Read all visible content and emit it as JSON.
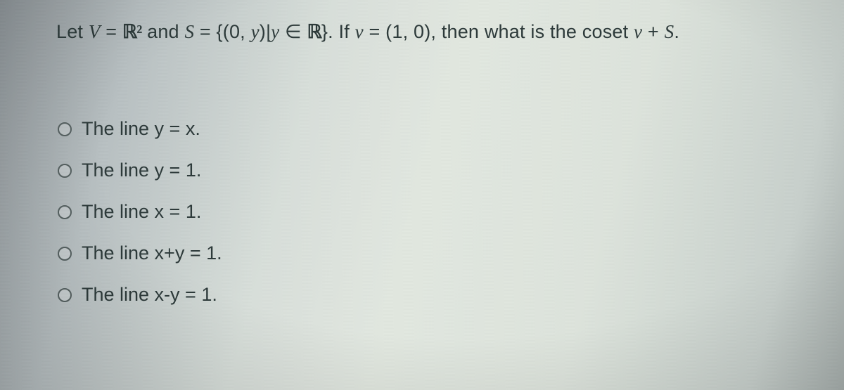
{
  "question": {
    "pre": "Let ",
    "V": "V",
    "eq1": " = ",
    "R2": "ℝ²",
    "and": " and ",
    "S": "S",
    "eq2": " = {(0, ",
    "y1": "y",
    "mid": ")|",
    "y2": "y",
    "in": " ∈ ",
    "R": "ℝ",
    "close": "}. If ",
    "v1": "v",
    "eq3": " = (1, 0), then what is the coset ",
    "v2": "v",
    "plus": " + ",
    "S2": "S",
    "dot": "."
  },
  "options": [
    {
      "label": "The line y = x."
    },
    {
      "label": "The line y = 1."
    },
    {
      "label": "The line x = 1."
    },
    {
      "label": "The line x+y = 1."
    },
    {
      "label": "The line x-y = 1."
    }
  ],
  "colors": {
    "text": "#2d3a3a",
    "radio_border": "#556060"
  },
  "typography": {
    "question_fontsize": 27,
    "option_fontsize": 27
  }
}
